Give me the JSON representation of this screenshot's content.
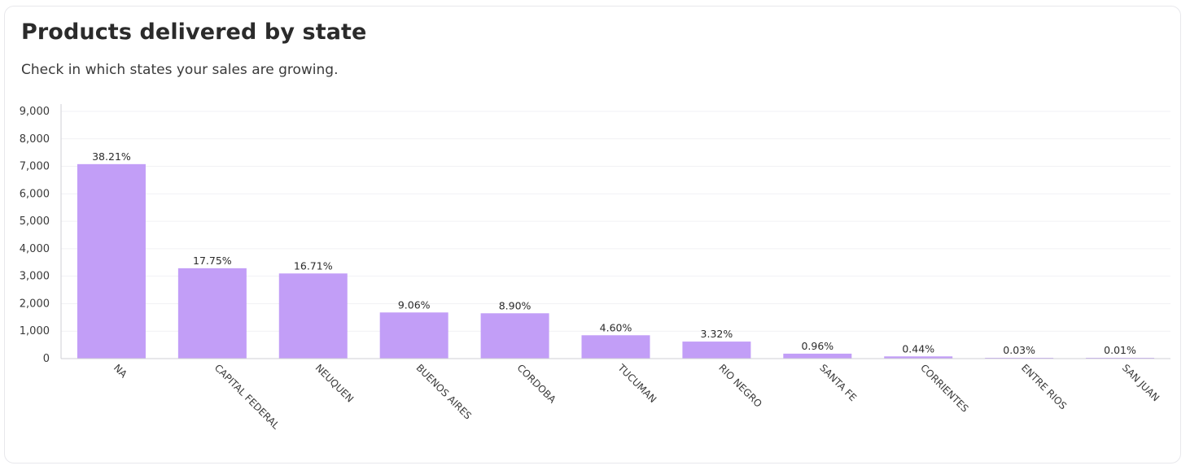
{
  "header": {
    "title": "Products delivered by state",
    "subtitle": "Check in which states your sales are growing."
  },
  "colors": {
    "bar": "#c29ef7",
    "grid": "#f1f1f4",
    "axis": "#cfcfd6",
    "text": "#3a3a3a"
  },
  "chart_data": {
    "type": "bar",
    "title": "Products delivered by state",
    "subtitle": "Check in which states your sales are growing.",
    "xlabel": "",
    "ylabel": "",
    "ylim": [
      0,
      9000
    ],
    "y_ticks": [
      0,
      1000,
      2000,
      3000,
      4000,
      5000,
      6000,
      7000,
      8000,
      9000
    ],
    "y_tick_labels": [
      "0",
      "1,000",
      "2,000",
      "3,000",
      "4,000",
      "5,000",
      "6,000",
      "7,000",
      "8,000",
      "9,000"
    ],
    "grid": true,
    "legend": "none",
    "categories": [
      "NA",
      "CAPITAL FEDERAL",
      "NEUQUEN",
      "BUENOS AIRES",
      "CORDOBA",
      "TUCUMAN",
      "RIO NEGRO",
      "SANTA FE",
      "CORRIENTES",
      "ENTRE RIOS",
      "SAN JUAN"
    ],
    "values": [
      7080,
      3290,
      3100,
      1680,
      1650,
      850,
      620,
      180,
      80,
      6,
      2
    ],
    "data_labels": [
      "38.21%",
      "17.75%",
      "16.71%",
      "9.06%",
      "8.90%",
      "4.60%",
      "3.32%",
      "0.96%",
      "0.44%",
      "0.03%",
      "0.01%"
    ]
  }
}
